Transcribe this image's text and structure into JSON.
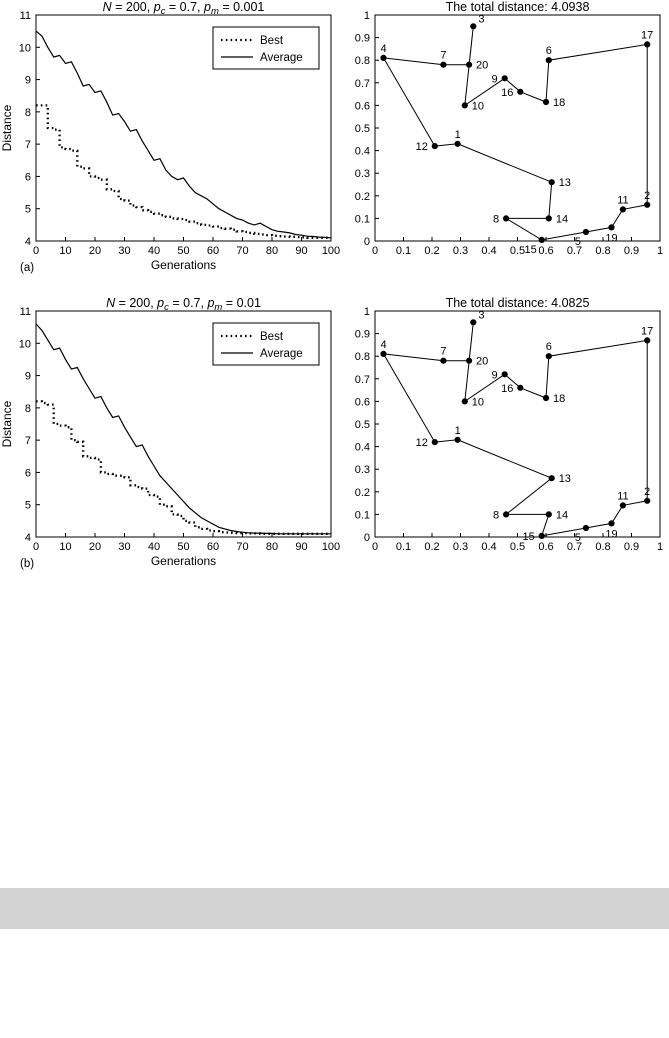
{
  "figure": {
    "band_color": "#d2d2d2",
    "band_top": 888,
    "band_height": 41
  },
  "chart_data": [
    {
      "id": "conv-a",
      "type": "line",
      "title_text": "N = 200, pc = 0.7, pm = 0.001",
      "title_parts": [
        {
          "t": "N",
          "i": true
        },
        {
          "t": " = 200,  "
        },
        {
          "t": "p",
          "i": true
        },
        {
          "t": "c",
          "i": true,
          "sub": true
        },
        {
          "t": " = 0.7,  "
        },
        {
          "t": "p",
          "i": true
        },
        {
          "t": "m",
          "i": true,
          "sub": true
        },
        {
          "t": " = 0.001"
        }
      ],
      "xlabel": "Generations",
      "ylabel": "Distance",
      "corner_label": "(a)",
      "xlim": [
        0,
        100
      ],
      "ylim": [
        4,
        11
      ],
      "xtick_vals": [
        0,
        10,
        20,
        30,
        40,
        50,
        60,
        70,
        80,
        90,
        100
      ],
      "xtick_labels": [
        "0",
        "10",
        "20",
        "30",
        "40",
        "50",
        "60",
        "70",
        "80",
        "90",
        "100"
      ],
      "ytick_vals": [
        4,
        5,
        6,
        7,
        8,
        9,
        10,
        11
      ],
      "ytick_labels": [
        "4",
        "5",
        "6",
        "7",
        "8",
        "9",
        "10",
        "11"
      ],
      "legend": [
        {
          "label": "Best",
          "style": "dotted"
        },
        {
          "label": "Average",
          "style": "solid"
        }
      ],
      "x_values": [
        0,
        2,
        4,
        6,
        8,
        10,
        12,
        14,
        16,
        18,
        20,
        22,
        24,
        26,
        28,
        30,
        32,
        34,
        36,
        38,
        40,
        42,
        44,
        46,
        48,
        50,
        52,
        54,
        56,
        58,
        60,
        62,
        64,
        66,
        68,
        70,
        72,
        74,
        76,
        78,
        80,
        82,
        84,
        86,
        88,
        90,
        92,
        94,
        96,
        98,
        100
      ],
      "series": [
        {
          "name": "Best",
          "style": "dotted",
          "step": true,
          "y": [
            8.2,
            8.2,
            7.5,
            7.45,
            6.9,
            6.85,
            6.8,
            6.3,
            6.25,
            6.0,
            5.95,
            5.9,
            5.6,
            5.55,
            5.3,
            5.25,
            5.1,
            5.05,
            4.95,
            4.9,
            4.85,
            4.8,
            4.75,
            4.7,
            4.68,
            4.65,
            4.6,
            4.55,
            4.5,
            4.48,
            4.45,
            4.4,
            4.38,
            4.35,
            4.3,
            4.28,
            4.25,
            4.22,
            4.2,
            4.18,
            4.16,
            4.15,
            4.14,
            4.13,
            4.12,
            4.11,
            4.1,
            4.1,
            4.1,
            4.1,
            4.1
          ]
        },
        {
          "name": "Average",
          "style": "solid",
          "step": false,
          "y": [
            10.5,
            10.35,
            10.0,
            9.7,
            9.75,
            9.5,
            9.55,
            9.2,
            8.8,
            8.85,
            8.6,
            8.65,
            8.3,
            7.9,
            7.95,
            7.7,
            7.4,
            7.45,
            7.1,
            6.8,
            6.5,
            6.55,
            6.2,
            6.0,
            5.9,
            5.95,
            5.7,
            5.5,
            5.4,
            5.3,
            5.15,
            5.0,
            4.9,
            4.8,
            4.7,
            4.65,
            4.55,
            4.5,
            4.55,
            4.45,
            4.35,
            4.3,
            4.28,
            4.25,
            4.2,
            4.18,
            4.15,
            4.14,
            4.12,
            4.11,
            4.1
          ]
        }
      ]
    },
    {
      "id": "tour-a",
      "type": "scatter",
      "title": "The total distance: 4.0938",
      "xlim": [
        0,
        1
      ],
      "ylim": [
        0,
        1
      ],
      "xtick_vals": [
        0,
        0.1,
        0.2,
        0.3,
        0.4,
        0.5,
        0.6,
        0.7,
        0.8,
        0.9,
        1
      ],
      "xtick_labels": [
        "0",
        "0.1",
        "0.2",
        "0.3",
        "0.4",
        "0.5",
        "0.6",
        "0.7",
        "0.8",
        "0.9",
        "1"
      ],
      "ytick_vals": [
        0,
        0.1,
        0.2,
        0.3,
        0.4,
        0.5,
        0.6,
        0.7,
        0.8,
        0.9,
        1
      ],
      "ytick_labels": [
        "0",
        "0.1",
        "0.2",
        "0.3",
        "0.4",
        "0.5",
        "0.6",
        "0.7",
        "0.8",
        "0.9",
        "1"
      ],
      "cities": [
        {
          "id": 1,
          "x": 0.29,
          "y": 0.43,
          "label_side": "above"
        },
        {
          "id": 2,
          "x": 0.955,
          "y": 0.16,
          "label_side": "above"
        },
        {
          "id": 3,
          "x": 0.345,
          "y": 0.95,
          "label_side": "above-right"
        },
        {
          "id": 4,
          "x": 0.03,
          "y": 0.81,
          "label_side": "above"
        },
        {
          "id": 5,
          "x": 0.74,
          "y": 0.04,
          "label_side": "below-left"
        },
        {
          "id": 6,
          "x": 0.61,
          "y": 0.8,
          "label_side": "above"
        },
        {
          "id": 7,
          "x": 0.24,
          "y": 0.78,
          "label_side": "above"
        },
        {
          "id": 8,
          "x": 0.46,
          "y": 0.1,
          "label_side": "left"
        },
        {
          "id": 9,
          "x": 0.455,
          "y": 0.72,
          "label_side": "left"
        },
        {
          "id": 10,
          "x": 0.315,
          "y": 0.6,
          "label_side": "right"
        },
        {
          "id": 11,
          "x": 0.87,
          "y": 0.14,
          "label_side": "above"
        },
        {
          "id": 12,
          "x": 0.21,
          "y": 0.42,
          "label_side": "left"
        },
        {
          "id": 13,
          "x": 0.62,
          "y": 0.26,
          "label_side": "right"
        },
        {
          "id": 14,
          "x": 0.61,
          "y": 0.1,
          "label_side": "right"
        },
        {
          "id": 15,
          "x": 0.585,
          "y": 0.005,
          "label_side": "below-left"
        },
        {
          "id": 16,
          "x": 0.51,
          "y": 0.66,
          "label_side": "left"
        },
        {
          "id": 17,
          "x": 0.955,
          "y": 0.87,
          "label_side": "above"
        },
        {
          "id": 18,
          "x": 0.6,
          "y": 0.615,
          "label_side": "right"
        },
        {
          "id": 19,
          "x": 0.83,
          "y": 0.06,
          "label_side": "below"
        },
        {
          "id": 20,
          "x": 0.33,
          "y": 0.78,
          "label_side": "right"
        }
      ],
      "tour": [
        4,
        7,
        20,
        3,
        10,
        9,
        16,
        18,
        6,
        17,
        2,
        11,
        19,
        5,
        15,
        8,
        14,
        13,
        1,
        12
      ]
    },
    {
      "id": "conv-b",
      "type": "line",
      "title_text": "N = 200, pc = 0.7, pm = 0.01",
      "title_parts": [
        {
          "t": "N",
          "i": true
        },
        {
          "t": " = 200,  "
        },
        {
          "t": "p",
          "i": true
        },
        {
          "t": "c",
          "i": true,
          "sub": true
        },
        {
          "t": " = 0.7,  "
        },
        {
          "t": "p",
          "i": true
        },
        {
          "t": "m",
          "i": true,
          "sub": true
        },
        {
          "t": " = 0.01"
        }
      ],
      "xlabel": "Generations",
      "ylabel": "Distance",
      "corner_label": "(b)",
      "xlim": [
        0,
        100
      ],
      "ylim": [
        4,
        11
      ],
      "xtick_vals": [
        0,
        10,
        20,
        30,
        40,
        50,
        60,
        70,
        80,
        90,
        100
      ],
      "xtick_labels": [
        "0",
        "10",
        "20",
        "30",
        "40",
        "50",
        "60",
        "70",
        "80",
        "90",
        "100"
      ],
      "ytick_vals": [
        4,
        5,
        6,
        7,
        8,
        9,
        10,
        11
      ],
      "ytick_labels": [
        "4",
        "5",
        "6",
        "7",
        "8",
        "9",
        "10",
        "11"
      ],
      "legend": [
        {
          "label": "Best",
          "style": "dotted"
        },
        {
          "label": "Average",
          "style": "solid"
        }
      ],
      "x_values": [
        0,
        2,
        4,
        6,
        8,
        10,
        12,
        14,
        16,
        18,
        20,
        22,
        24,
        26,
        28,
        30,
        32,
        34,
        36,
        38,
        40,
        42,
        44,
        46,
        48,
        50,
        52,
        54,
        56,
        58,
        60,
        62,
        64,
        66,
        68,
        70,
        72,
        74,
        76,
        78,
        80,
        82,
        84,
        86,
        88,
        90,
        92,
        94,
        96,
        98,
        100
      ],
      "series": [
        {
          "name": "Best",
          "style": "dotted",
          "step": true,
          "y": [
            8.2,
            8.15,
            8.1,
            7.5,
            7.45,
            7.4,
            7.0,
            6.95,
            6.5,
            6.45,
            6.4,
            6.0,
            5.95,
            5.9,
            5.9,
            5.85,
            5.6,
            5.55,
            5.5,
            5.3,
            5.25,
            5.0,
            4.95,
            4.7,
            4.65,
            4.5,
            4.45,
            4.3,
            4.25,
            4.2,
            4.18,
            4.15,
            4.14,
            4.13,
            4.12,
            4.12,
            4.11,
            4.11,
            4.1,
            4.1,
            4.1,
            4.1,
            4.1,
            4.1,
            4.1,
            4.1,
            4.1,
            4.1,
            4.1,
            4.1,
            4.1
          ]
        },
        {
          "name": "Average",
          "style": "solid",
          "step": false,
          "y": [
            10.6,
            10.4,
            10.1,
            9.8,
            9.85,
            9.5,
            9.2,
            9.25,
            8.9,
            8.6,
            8.3,
            8.35,
            8.0,
            7.7,
            7.75,
            7.4,
            7.1,
            6.8,
            6.85,
            6.5,
            6.2,
            5.9,
            5.7,
            5.5,
            5.3,
            5.1,
            4.9,
            4.75,
            4.6,
            4.5,
            4.4,
            4.3,
            4.25,
            4.2,
            4.17,
            4.15,
            4.13,
            4.12,
            4.12,
            4.11,
            4.11,
            4.1,
            4.1,
            4.1,
            4.1,
            4.1,
            4.1,
            4.1,
            4.1,
            4.1,
            4.1
          ]
        }
      ]
    },
    {
      "id": "tour-b",
      "type": "scatter",
      "title": "The total distance: 4.0825",
      "xlim": [
        0,
        1
      ],
      "ylim": [
        0,
        1
      ],
      "xtick_vals": [
        0,
        0.1,
        0.2,
        0.3,
        0.4,
        0.5,
        0.6,
        0.7,
        0.8,
        0.9,
        1
      ],
      "xtick_labels": [
        "0",
        "0.1",
        "0.2",
        "0.3",
        "0.4",
        "0.5",
        "0.6",
        "0.7",
        "0.8",
        "0.9",
        "1"
      ],
      "ytick_vals": [
        0,
        0.1,
        0.2,
        0.3,
        0.4,
        0.5,
        0.6,
        0.7,
        0.8,
        0.9,
        1
      ],
      "ytick_labels": [
        "0",
        "0.1",
        "0.2",
        "0.3",
        "0.4",
        "0.5",
        "0.6",
        "0.7",
        "0.8",
        "0.9",
        "1"
      ],
      "cities": [
        {
          "id": 1,
          "x": 0.29,
          "y": 0.43,
          "label_side": "above"
        },
        {
          "id": 2,
          "x": 0.955,
          "y": 0.16,
          "label_side": "above"
        },
        {
          "id": 3,
          "x": 0.345,
          "y": 0.95,
          "label_side": "above-right"
        },
        {
          "id": 4,
          "x": 0.03,
          "y": 0.81,
          "label_side": "above"
        },
        {
          "id": 5,
          "x": 0.74,
          "y": 0.04,
          "label_side": "below-left"
        },
        {
          "id": 6,
          "x": 0.61,
          "y": 0.8,
          "label_side": "above"
        },
        {
          "id": 7,
          "x": 0.24,
          "y": 0.78,
          "label_side": "above"
        },
        {
          "id": 8,
          "x": 0.46,
          "y": 0.1,
          "label_side": "left"
        },
        {
          "id": 9,
          "x": 0.455,
          "y": 0.72,
          "label_side": "left"
        },
        {
          "id": 10,
          "x": 0.315,
          "y": 0.6,
          "label_side": "right"
        },
        {
          "id": 11,
          "x": 0.87,
          "y": 0.14,
          "label_side": "above"
        },
        {
          "id": 12,
          "x": 0.21,
          "y": 0.42,
          "label_side": "left"
        },
        {
          "id": 13,
          "x": 0.62,
          "y": 0.26,
          "label_side": "right"
        },
        {
          "id": 14,
          "x": 0.61,
          "y": 0.1,
          "label_side": "right"
        },
        {
          "id": 15,
          "x": 0.585,
          "y": 0.005,
          "label_side": "left"
        },
        {
          "id": 16,
          "x": 0.51,
          "y": 0.66,
          "label_side": "left"
        },
        {
          "id": 17,
          "x": 0.955,
          "y": 0.87,
          "label_side": "above"
        },
        {
          "id": 18,
          "x": 0.6,
          "y": 0.615,
          "label_side": "right"
        },
        {
          "id": 19,
          "x": 0.83,
          "y": 0.06,
          "label_side": "below"
        },
        {
          "id": 20,
          "x": 0.33,
          "y": 0.78,
          "label_side": "right"
        }
      ],
      "tour": [
        4,
        7,
        20,
        3,
        10,
        9,
        16,
        18,
        6,
        17,
        2,
        11,
        19,
        5,
        15,
        14,
        8,
        13,
        1,
        12
      ]
    }
  ]
}
